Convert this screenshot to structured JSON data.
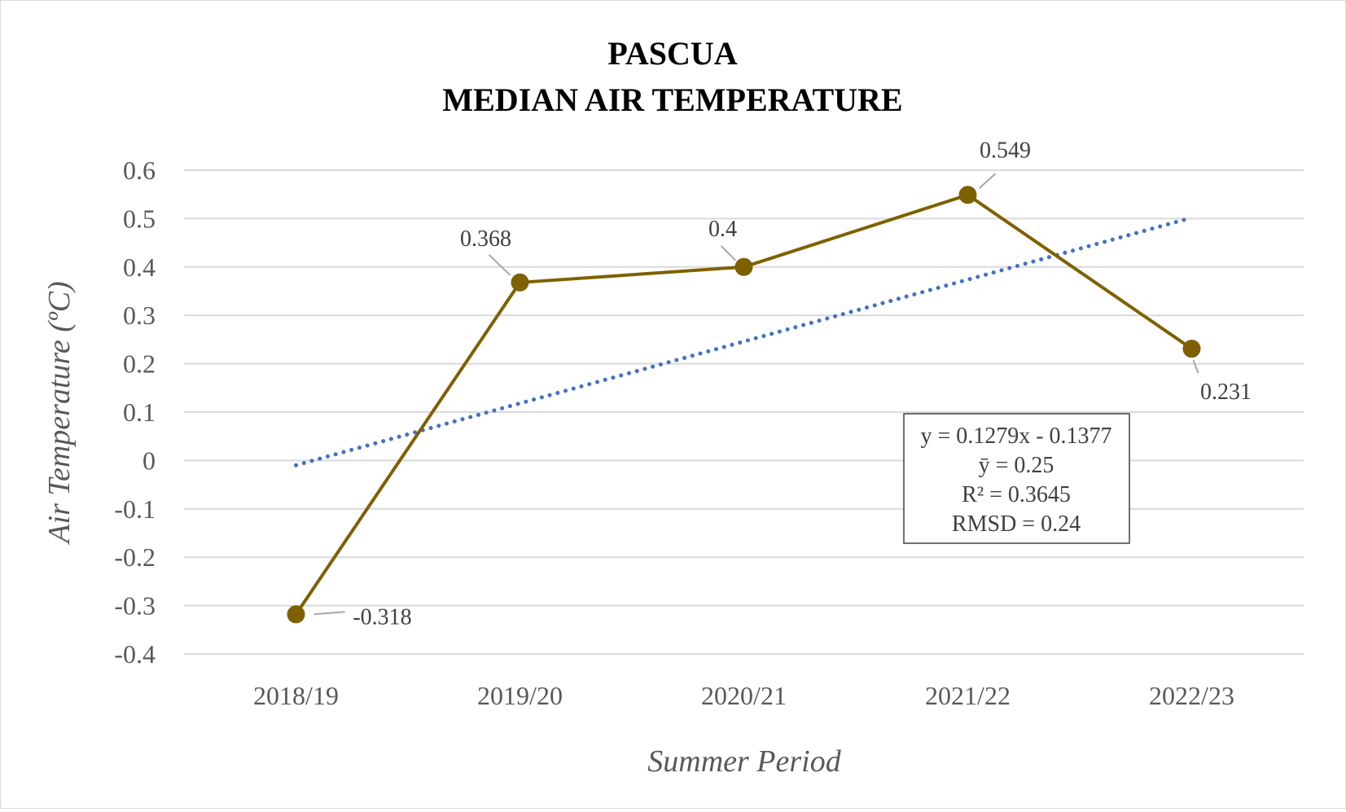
{
  "chart_data": {
    "type": "line",
    "title_lines": [
      "PASCUA",
      "MEDIAN AIR TEMPERATURE"
    ],
    "xlabel": "Summer Period",
    "ylabel": "Air Temperature (ºC)",
    "categories": [
      "2018/19",
      "2019/20",
      "2020/21",
      "2021/22",
      "2022/23"
    ],
    "series": [
      {
        "values": [
          -0.318,
          0.368,
          0.4,
          0.549,
          0.231
        ],
        "data_labels": [
          "-0.318",
          "0.368",
          "0.4",
          "0.549",
          "0.231"
        ],
        "color": "#7f6000"
      }
    ],
    "trendline": {
      "type": "linear",
      "slope": 0.1279,
      "intercept": -0.1377,
      "color": "#4472c4",
      "style": "dotted"
    },
    "ylim": [
      -0.4,
      0.6
    ],
    "yticks": [
      0.6,
      0.5,
      0.4,
      0.3,
      0.2,
      0.1,
      0,
      -0.1,
      -0.2,
      -0.3,
      -0.4
    ],
    "ytick_labels": [
      "0.6",
      "0.5",
      "0.4",
      "0.3",
      "0.2",
      "0.1",
      "0",
      "-0.1",
      "-0.2",
      "-0.3",
      "-0.4"
    ],
    "grid": true,
    "stats_box": [
      "y = 0.1279x - 0.1377",
      "ȳ = 0.25",
      "R² = 0.3645",
      "RMSD = 0.24"
    ]
  }
}
